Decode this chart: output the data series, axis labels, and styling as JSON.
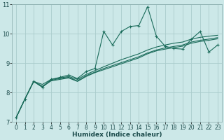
{
  "xlabel": "Humidex (Indice chaleur)",
  "background_color": "#cce8e8",
  "grid_color": "#aacccc",
  "line_color": "#1a6b5a",
  "xlim": [
    -0.5,
    23.5
  ],
  "ylim": [
    7,
    11
  ],
  "xtick_labels": [
    "0",
    "1",
    "2",
    "3",
    "4",
    "5",
    "6",
    "7",
    "8",
    "9",
    "10",
    "11",
    "12",
    "13",
    "14",
    "15",
    "16",
    "17",
    "18",
    "19",
    "20",
    "21",
    "22",
    "23"
  ],
  "yticks": [
    7,
    8,
    9,
    10,
    11
  ],
  "jagged": [
    7.15,
    7.78,
    8.38,
    8.18,
    8.45,
    8.52,
    8.6,
    8.48,
    8.72,
    8.82,
    10.08,
    9.62,
    10.08,
    10.25,
    10.28,
    10.92,
    9.92,
    9.58,
    9.5,
    9.48,
    9.82,
    10.08,
    9.38,
    9.62
  ],
  "line1": [
    7.15,
    7.78,
    8.38,
    8.28,
    8.45,
    8.5,
    8.55,
    8.45,
    8.62,
    8.75,
    8.88,
    9.0,
    9.12,
    9.22,
    9.32,
    9.45,
    9.55,
    9.62,
    9.68,
    9.72,
    9.82,
    9.88,
    9.92,
    9.95
  ],
  "line2": [
    7.15,
    7.78,
    8.38,
    8.22,
    8.42,
    8.48,
    8.52,
    8.4,
    8.58,
    8.7,
    8.82,
    8.92,
    9.02,
    9.12,
    9.22,
    9.35,
    9.45,
    9.52,
    9.57,
    9.62,
    9.72,
    9.78,
    9.82,
    9.87
  ],
  "line3": [
    7.15,
    7.78,
    8.38,
    8.2,
    8.4,
    8.45,
    8.5,
    8.38,
    8.55,
    8.68,
    8.78,
    8.88,
    8.98,
    9.08,
    9.18,
    9.32,
    9.42,
    9.48,
    9.53,
    9.58,
    9.68,
    9.74,
    9.78,
    9.83
  ],
  "xlabel_fontsize": 6.5,
  "ytick_fontsize": 6,
  "xtick_fontsize": 5.5
}
